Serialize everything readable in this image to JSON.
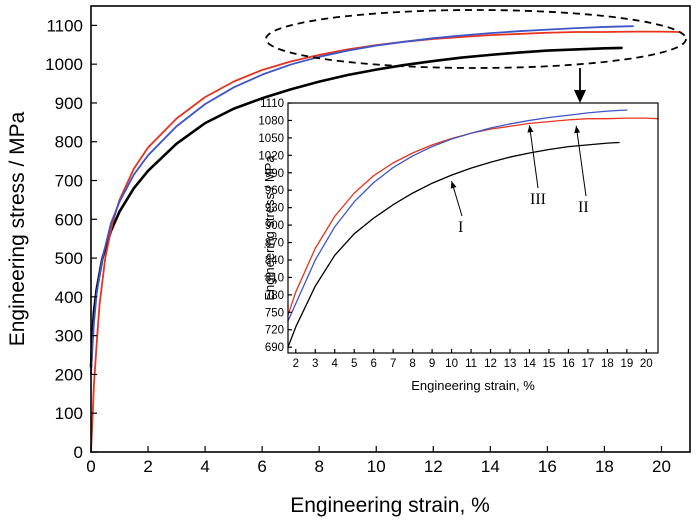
{
  "chart_data": [
    {
      "type": "line",
      "xlabel": "Engineering strain, %",
      "ylabel": "Engineering stress / MPa",
      "xlim": [
        0,
        21
      ],
      "ylim": [
        0,
        1150
      ],
      "x_ticks": [
        "0",
        "2",
        "4",
        "6",
        "8",
        "10",
        "12",
        "14",
        "16",
        "18",
        "20"
      ],
      "y_ticks": [
        "0",
        "100",
        "200",
        "300",
        "400",
        "500",
        "600",
        "700",
        "800",
        "900",
        "1000",
        "1100"
      ],
      "grid": false,
      "series": [
        {
          "color": "#000000",
          "points": [
            [
              0,
              220
            ],
            [
              0.05,
              300
            ],
            [
              0.1,
              360
            ],
            [
              0.2,
              420
            ],
            [
              0.4,
              500
            ],
            [
              0.7,
              570
            ],
            [
              1,
              620
            ],
            [
              1.5,
              680
            ],
            [
              2,
              725
            ],
            [
              3,
              795
            ],
            [
              4,
              848
            ],
            [
              5,
              885
            ],
            [
              6,
              912
            ],
            [
              7,
              935
            ],
            [
              8,
              955
            ],
            [
              9,
              972
            ],
            [
              10,
              986
            ],
            [
              11,
              998
            ],
            [
              12,
              1008
            ],
            [
              13,
              1017
            ],
            [
              14,
              1024
            ],
            [
              15,
              1030
            ],
            [
              16,
              1035
            ],
            [
              17,
              1038
            ],
            [
              18,
              1041
            ],
            [
              18.6,
              1042
            ]
          ]
        },
        {
          "color": "#e8331e",
          "points": [
            [
              0,
              0
            ],
            [
              0.05,
              80
            ],
            [
              0.1,
              170
            ],
            [
              0.2,
              280
            ],
            [
              0.3,
              380
            ],
            [
              0.5,
              500
            ],
            [
              0.75,
              590
            ],
            [
              1,
              650
            ],
            [
              1.5,
              730
            ],
            [
              2,
              785
            ],
            [
              3,
              860
            ],
            [
              4,
              915
            ],
            [
              5,
              955
            ],
            [
              6,
              985
            ],
            [
              7,
              1007
            ],
            [
              8,
              1024
            ],
            [
              9,
              1038
            ],
            [
              10,
              1049
            ],
            [
              11,
              1058
            ],
            [
              12,
              1065
            ],
            [
              13,
              1070
            ],
            [
              14,
              1075
            ],
            [
              15,
              1078
            ],
            [
              16,
              1081
            ],
            [
              17,
              1083
            ],
            [
              18,
              1083
            ],
            [
              19,
              1084
            ],
            [
              20,
              1084
            ],
            [
              20.6,
              1083
            ]
          ]
        },
        {
          "color": "#3d55c8",
          "points": [
            [
              0,
              200
            ],
            [
              0.05,
              270
            ],
            [
              0.1,
              330
            ],
            [
              0.2,
              410
            ],
            [
              0.4,
              500
            ],
            [
              0.7,
              590
            ],
            [
              1,
              645
            ],
            [
              1.5,
              715
            ],
            [
              2,
              765
            ],
            [
              3,
              840
            ],
            [
              4,
              897
            ],
            [
              5,
              940
            ],
            [
              6,
              973
            ],
            [
              7,
              999
            ],
            [
              8,
              1019
            ],
            [
              9,
              1035
            ],
            [
              10,
              1048
            ],
            [
              11,
              1058
            ],
            [
              12,
              1067
            ],
            [
              13,
              1074
            ],
            [
              14,
              1080
            ],
            [
              15,
              1085
            ],
            [
              16,
              1089
            ],
            [
              17,
              1093
            ],
            [
              18,
              1096
            ],
            [
              19,
              1098
            ]
          ]
        }
      ]
    },
    {
      "type": "line",
      "xlabel": "Engineering strain, %",
      "ylabel": "Engineering stress / MPa",
      "xlim": [
        1.6,
        20.6
      ],
      "ylim": [
        680,
        1110
      ],
      "x_ticks": [
        "2",
        "3",
        "4",
        "5",
        "6",
        "7",
        "8",
        "9",
        "10",
        "11",
        "12",
        "13",
        "14",
        "15",
        "16",
        "17",
        "18",
        "19",
        "20"
      ],
      "y_ticks": [
        "690",
        "720",
        "750",
        "780",
        "810",
        "840",
        "870",
        "900",
        "930",
        "960",
        "990",
        "1020",
        "1050",
        "1080",
        "1110"
      ],
      "grid": false,
      "series": [
        {
          "color": "#000000",
          "points": [
            [
              1.6,
              690
            ],
            [
              2,
              725
            ],
            [
              3,
              795
            ],
            [
              4,
              848
            ],
            [
              5,
              885
            ],
            [
              6,
              912
            ],
            [
              7,
              935
            ],
            [
              8,
              955
            ],
            [
              9,
              972
            ],
            [
              10,
              986
            ],
            [
              11,
              998
            ],
            [
              12,
              1008
            ],
            [
              13,
              1017
            ],
            [
              14,
              1024
            ],
            [
              15,
              1030
            ],
            [
              16,
              1035
            ],
            [
              17,
              1038
            ],
            [
              18,
              1041
            ],
            [
              18.6,
              1042
            ]
          ]
        },
        {
          "color": "#e8331e",
          "points": [
            [
              1.6,
              745
            ],
            [
              2,
              785
            ],
            [
              3,
              860
            ],
            [
              4,
              915
            ],
            [
              5,
              955
            ],
            [
              6,
              985
            ],
            [
              7,
              1007
            ],
            [
              8,
              1024
            ],
            [
              9,
              1038
            ],
            [
              10,
              1049
            ],
            [
              11,
              1058
            ],
            [
              12,
              1065
            ],
            [
              13,
              1070
            ],
            [
              14,
              1075
            ],
            [
              15,
              1078
            ],
            [
              16,
              1081
            ],
            [
              17,
              1083
            ],
            [
              18,
              1083
            ],
            [
              19,
              1084
            ],
            [
              20,
              1084
            ],
            [
              20.6,
              1083
            ]
          ]
        },
        {
          "color": "#3d55c8",
          "points": [
            [
              1.6,
              735
            ],
            [
              2,
              765
            ],
            [
              3,
              840
            ],
            [
              4,
              897
            ],
            [
              5,
              940
            ],
            [
              6,
              973
            ],
            [
              7,
              999
            ],
            [
              8,
              1019
            ],
            [
              9,
              1035
            ],
            [
              10,
              1048
            ],
            [
              11,
              1058
            ],
            [
              12,
              1067
            ],
            [
              13,
              1074
            ],
            [
              14,
              1080
            ],
            [
              15,
              1085
            ],
            [
              16,
              1089
            ],
            [
              17,
              1093
            ],
            [
              18,
              1096
            ],
            [
              19,
              1098
            ]
          ]
        }
      ],
      "annotations": [
        {
          "text": "I",
          "target": [
            10,
            986
          ]
        },
        {
          "text": "III",
          "target": [
            14,
            1082
          ]
        },
        {
          "text": "II",
          "target": [
            16.4,
            1081
          ]
        }
      ]
    }
  ]
}
